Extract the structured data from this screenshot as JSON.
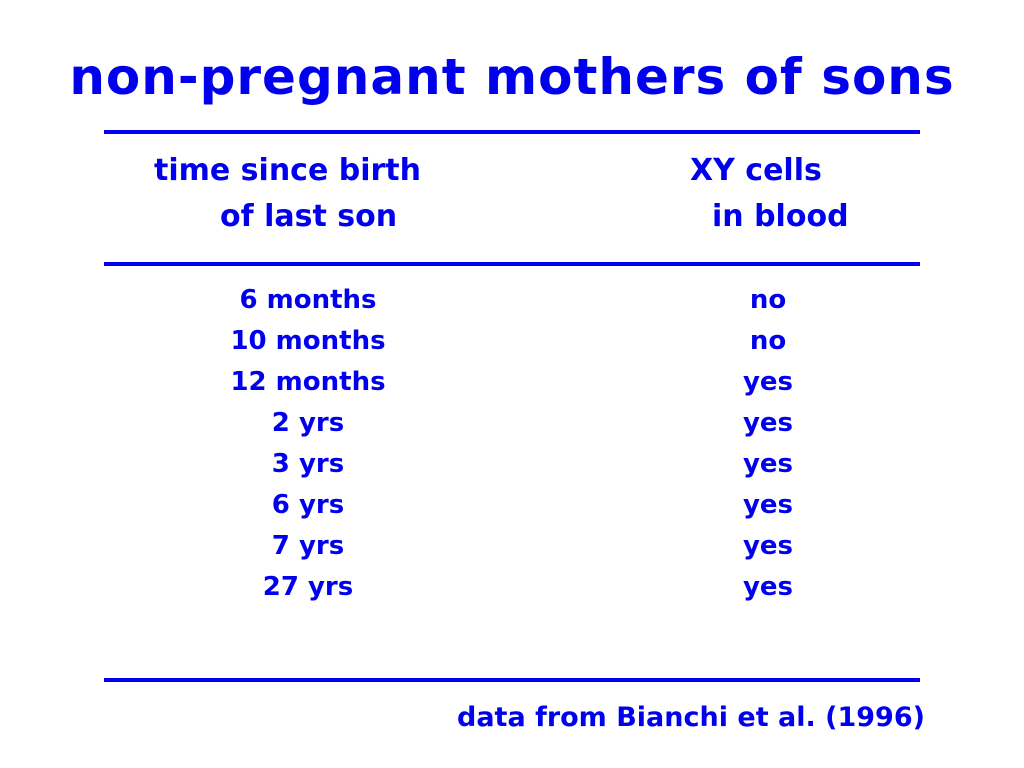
{
  "title": "non-pregnant mothers of sons",
  "table": {
    "headers": {
      "time_line1": "time since birth",
      "time_line2": "of last son",
      "xy_line1": "XY cells",
      "xy_line2": "in blood"
    },
    "rows": [
      {
        "time": "6 months",
        "xy": "no"
      },
      {
        "time": "10 months",
        "xy": "no"
      },
      {
        "time": "12 months",
        "xy": "yes"
      },
      {
        "time": "2 yrs",
        "xy": "yes"
      },
      {
        "time": "3 yrs",
        "xy": "yes"
      },
      {
        "time": "6 yrs",
        "xy": "yes"
      },
      {
        "time": "7 yrs",
        "xy": "yes"
      },
      {
        "time": "27 yrs",
        "xy": "yes"
      }
    ]
  },
  "source": "data from Bianchi et al. (1996)",
  "colors": {
    "text": "#0000ee",
    "background": "#ffffff"
  }
}
